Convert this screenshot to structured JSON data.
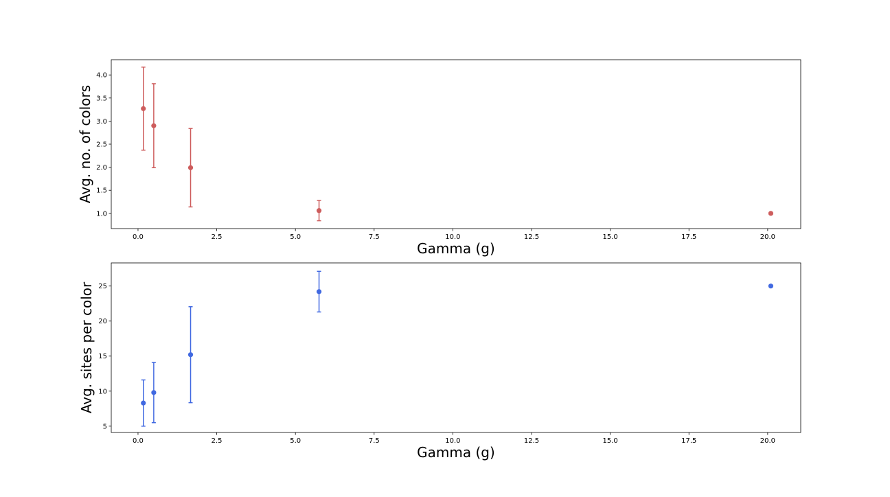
{
  "chart_data": [
    {
      "type": "scatter",
      "error_bars": true,
      "xlabel": "Gamma (g)",
      "ylabel": "Avg. no. of colors",
      "xlim": [
        -0.85,
        21.05
      ],
      "ylim": [
        0.67,
        4.33
      ],
      "xticks": [
        0.0,
        2.5,
        5.0,
        7.5,
        10.0,
        12.5,
        15.0,
        17.5,
        20.0
      ],
      "xtick_labels": [
        "0.0",
        "2.5",
        "5.0",
        "7.5",
        "10.0",
        "12.5",
        "15.0",
        "17.5",
        "20.0"
      ],
      "yticks": [
        1.0,
        1.5,
        2.0,
        2.5,
        3.0,
        3.5,
        4.0
      ],
      "ytick_labels": [
        "1.0",
        "1.5",
        "2.0",
        "2.5",
        "3.0",
        "3.5",
        "4.0"
      ],
      "grid": false,
      "color": "#cd5c5c",
      "series": [
        {
          "x": [
            0.17,
            0.5,
            1.67,
            5.75,
            20.1
          ],
          "y": [
            3.27,
            2.9,
            1.99,
            1.06,
            1.0
          ],
          "yerr": [
            0.9,
            0.91,
            0.85,
            0.22,
            0.0
          ]
        }
      ]
    },
    {
      "type": "scatter",
      "error_bars": true,
      "xlabel": "Gamma (g)",
      "ylabel": "Avg. sites per color",
      "xlim": [
        -0.85,
        21.05
      ],
      "ylim": [
        4.1,
        28.3
      ],
      "xticks": [
        0.0,
        2.5,
        5.0,
        7.5,
        10.0,
        12.5,
        15.0,
        17.5,
        20.0
      ],
      "xtick_labels": [
        "0.0",
        "2.5",
        "5.0",
        "7.5",
        "10.0",
        "12.5",
        "15.0",
        "17.5",
        "20.0"
      ],
      "yticks": [
        5,
        10,
        15,
        20,
        25
      ],
      "ytick_labels": [
        "5",
        "10",
        "15",
        "20",
        "25"
      ],
      "grid": false,
      "color": "#4169e1",
      "series": [
        {
          "x": [
            0.17,
            0.5,
            1.67,
            5.75,
            20.1
          ],
          "y": [
            8.3,
            9.8,
            15.2,
            24.2,
            25.0
          ],
          "yerr": [
            3.3,
            4.3,
            6.85,
            2.9,
            0.0
          ]
        }
      ]
    }
  ]
}
